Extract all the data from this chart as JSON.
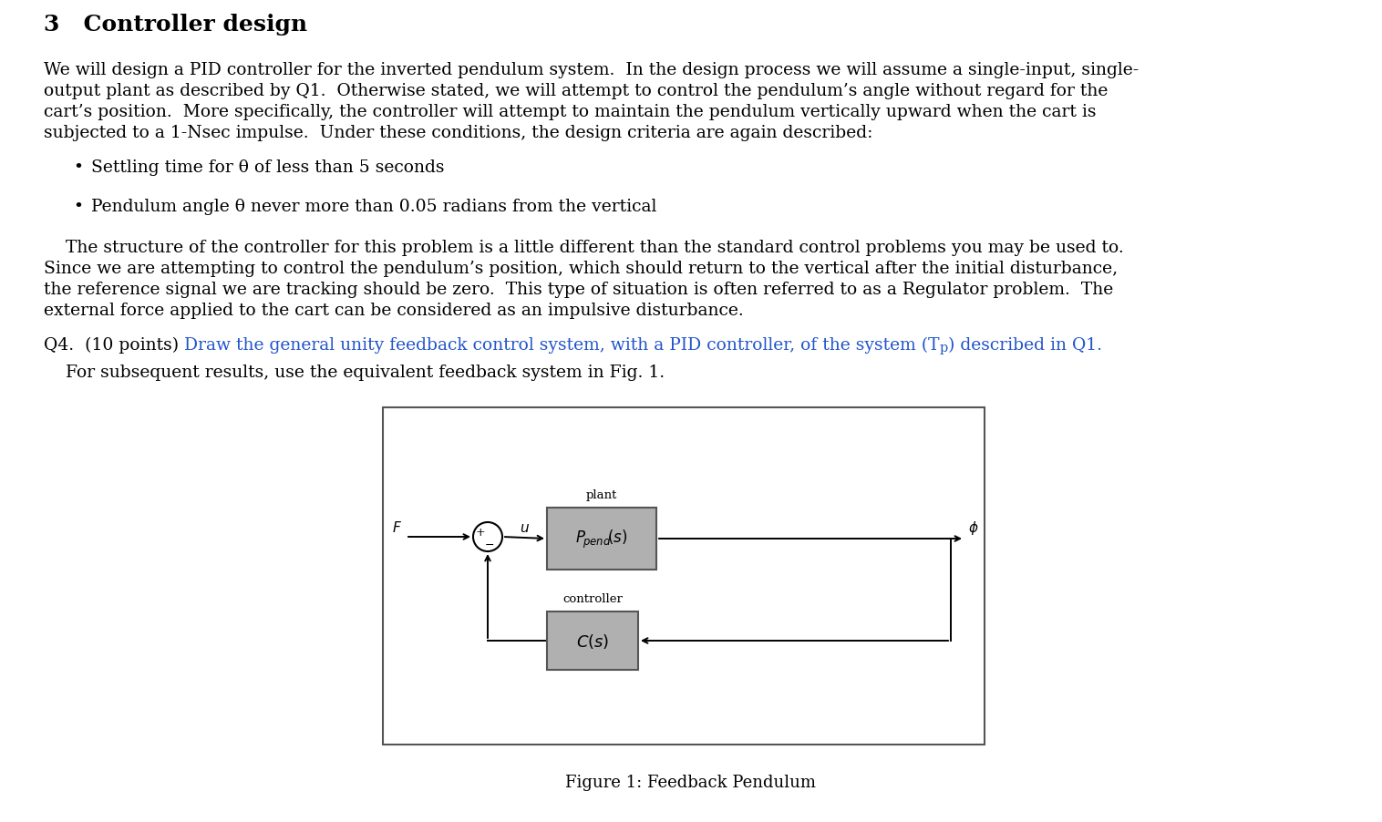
{
  "background_color": "#ffffff",
  "title": "3   Controller design",
  "title_fontsize": 18,
  "body_fontsize": 13.5,
  "body_text": [
    "We will design a PID controller for the inverted pendulum system.  In the design process we will assume a single-input, single-",
    "output plant as described by Q1.  Otherwise stated, we will attempt to control the pendulum’s angle without regard for the",
    "cart’s position.  More specifically, the controller will attempt to maintain the pendulum vertically upward when the cart is",
    "subjected to a 1-Nsec impulse.  Under these conditions, the design criteria are again described:"
  ],
  "bullet1": "Settling time for θ of less than 5 seconds",
  "bullet2": "Pendulum angle θ never more than 0.05 radians from the vertical",
  "para2_text": [
    "    The structure of the controller for this problem is a little different than the standard control problems you may be used to.",
    "Since we are attempting to control the pendulum’s position, which should return to the vertical after the initial disturbance,",
    "the reference signal we are tracking should be zero.  This type of situation is often referred to as a Regulator problem.  The",
    "external force applied to the cart can be considered as an impulsive disturbance."
  ],
  "q4_black": "Q4.  (10 points) ",
  "q4_blue": "Draw the general unity feedback control system, with a PID controller, of the system (T",
  "q4_sub": "p",
  "q4_blue2": ") described in Q1.",
  "q4_line2": "    For subsequent results, use the equivalent feedback system in Fig. 1.",
  "fig_caption": "Figure 1: Feedback Pendulum",
  "block_bg": "#b0b0b0",
  "block_border": "#555555",
  "diagram_border": "#555555",
  "arrow_color": "#000000",
  "text_color": "#000000",
  "blue_color": "#2255cc"
}
